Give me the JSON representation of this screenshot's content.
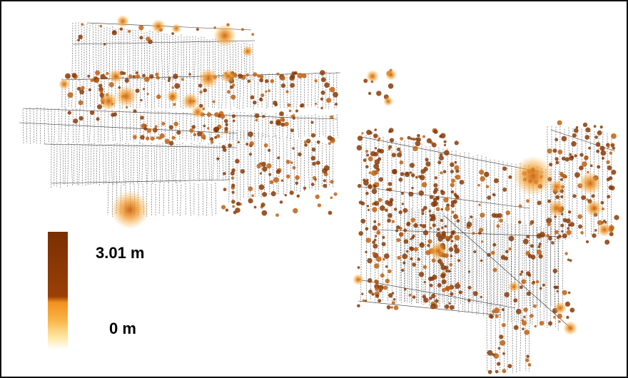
{
  "legend": {
    "max_label": "3.01 m",
    "min_label": "0 m",
    "colors": [
      "#7a2f02",
      "#9a4006",
      "#f29120",
      "#f7b547",
      "#ffe9a6",
      "#ffffff"
    ]
  },
  "map": {
    "heat_color_low": "#f7a63a",
    "heat_color_high": "#8a3a06",
    "line_color": "#333333"
  }
}
